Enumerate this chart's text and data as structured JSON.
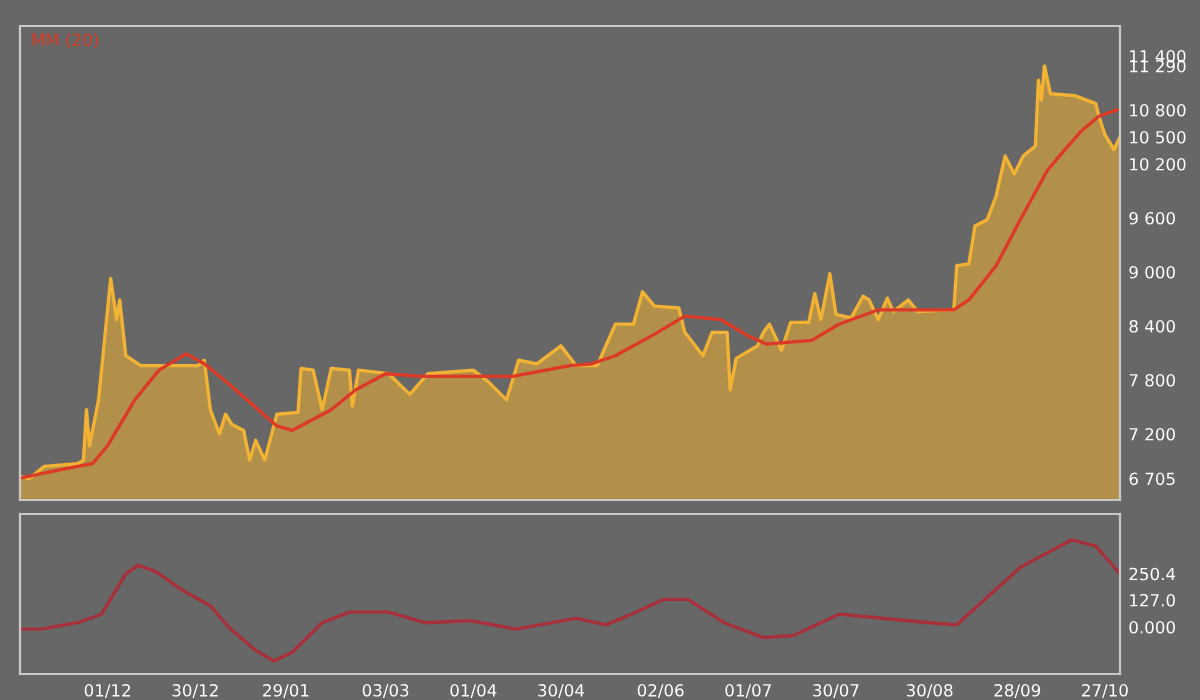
{
  "chart_data": [
    {
      "type": "line",
      "xlim": [
        "2012-11-02",
        "2013-11-01"
      ],
      "ylim": [
        6467,
        11733
      ],
      "yticks": [
        {
          "value": 11400,
          "label": "11 400"
        },
        {
          "value": 11290,
          "label": "11 290"
        },
        {
          "value": 10800,
          "label": "10 800"
        },
        {
          "value": 10500,
          "label": "10 500"
        },
        {
          "value": 10200,
          "label": "10 200"
        },
        {
          "value": 9600,
          "label": "9 600"
        },
        {
          "value": 9000,
          "label": "9 000"
        },
        {
          "value": 8400,
          "label": "8 400"
        },
        {
          "value": 7800,
          "label": "7 800"
        },
        {
          "value": 7200,
          "label": "7 200"
        },
        {
          "value": 6705,
          "label": "6 705"
        }
      ],
      "tick_labels": "y",
      "grid": false,
      "legend": "top left",
      "series": [
        {
          "type": "area",
          "color": "#f2b233",
          "x": [
            "2012-11-02",
            "2012-11-05",
            "2012-11-10",
            "2012-11-21",
            "2012-11-23",
            "2012-11-24",
            "2012-11-25",
            "2012-11-28",
            "2012-12-02",
            "2012-12-04",
            "2012-12-05",
            "2012-12-07",
            "2012-12-12",
            "2012-12-31",
            "2013-01-02",
            "2013-01-04",
            "2013-01-07",
            "2013-01-09",
            "2013-01-11",
            "2013-01-15",
            "2013-01-17",
            "2013-01-19",
            "2013-01-22",
            "2013-01-26",
            "2013-02-02",
            "2013-02-03",
            "2013-02-07",
            "2013-02-10",
            "2013-02-13",
            "2013-02-19",
            "2013-02-20",
            "2013-02-22",
            "2013-03-04",
            "2013-03-11",
            "2013-03-17",
            "2013-04-01",
            "2013-04-06",
            "2013-04-12",
            "2013-04-16",
            "2013-04-22",
            "2013-04-30",
            "2013-05-05",
            "2013-05-10",
            "2013-05-12",
            "2013-05-18",
            "2013-05-24",
            "2013-05-27",
            "2013-05-31",
            "2013-06-08",
            "2013-06-10",
            "2013-06-16",
            "2013-06-19",
            "2013-06-24",
            "2013-06-25",
            "2013-06-27",
            "2013-07-04",
            "2013-07-06",
            "2013-07-08",
            "2013-07-12",
            "2013-07-15",
            "2013-07-21",
            "2013-07-23",
            "2013-07-25",
            "2013-07-28",
            "2013-07-30",
            "2013-08-04",
            "2013-08-08",
            "2013-08-10",
            "2013-08-13",
            "2013-08-16",
            "2013-08-18",
            "2013-08-23",
            "2013-08-26",
            "2013-09-07",
            "2013-09-08",
            "2013-09-12",
            "2013-09-14",
            "2013-09-18",
            "2013-09-21",
            "2013-09-24",
            "2013-09-27",
            "2013-09-30",
            "2013-10-04",
            "2013-10-05",
            "2013-10-06",
            "2013-10-07",
            "2013-10-09",
            "2013-10-17",
            "2013-10-24",
            "2013-10-25",
            "2013-10-27",
            "2013-10-30",
            "2013-11-01"
          ],
          "values": [
            6730,
            6705,
            6840,
            6870,
            6910,
            7470,
            7070,
            7580,
            8930,
            8470,
            8690,
            8070,
            7960,
            7960,
            8020,
            7470,
            7200,
            7420,
            7310,
            7240,
            6910,
            7130,
            6910,
            7420,
            7440,
            7930,
            7910,
            7470,
            7930,
            7910,
            7510,
            7910,
            7870,
            7640,
            7870,
            7910,
            7780,
            7580,
            8020,
            7980,
            8180,
            7960,
            7960,
            7960,
            8420,
            8420,
            8780,
            8620,
            8600,
            8330,
            8070,
            8330,
            8330,
            7690,
            8040,
            8180,
            8330,
            8420,
            8130,
            8440,
            8440,
            8760,
            8470,
            8980,
            8530,
            8490,
            8730,
            8690,
            8470,
            8710,
            8560,
            8690,
            8560,
            8580,
            9070,
            9090,
            9510,
            9580,
            9840,
            10290,
            10090,
            10290,
            10400,
            11130,
            10910,
            11290,
            10980,
            10960,
            10870,
            10730,
            10530,
            10360,
            10500
          ]
        },
        {
          "name": "MM (20)",
          "color": "#dc3a26",
          "x": [
            "2012-11-02",
            "2012-11-18",
            "2012-11-26",
            "2012-12-01",
            "2012-12-10",
            "2012-12-18",
            "2012-12-27",
            "2013-01-02",
            "2013-01-11",
            "2013-01-26",
            "2013-01-31",
            "2013-02-13",
            "2013-02-21",
            "2013-03-03",
            "2013-03-15",
            "2013-04-01",
            "2013-04-14",
            "2013-05-03",
            "2013-05-10",
            "2013-05-18",
            "2013-05-31",
            "2013-06-10",
            "2013-06-22",
            "2013-07-01",
            "2013-07-07",
            "2013-07-22",
            "2013-07-31",
            "2013-08-13",
            "2013-09-07",
            "2013-09-12",
            "2013-09-21",
            "2013-09-29",
            "2013-10-08",
            "2013-10-12",
            "2013-10-19",
            "2013-10-25",
            "2013-10-31"
          ],
          "values": [
            6710,
            6820,
            6870,
            7070,
            7580,
            7910,
            8090,
            7980,
            7730,
            7290,
            7240,
            7470,
            7690,
            7870,
            7840,
            7840,
            7840,
            7960,
            7980,
            8070,
            8310,
            8510,
            8470,
            8290,
            8200,
            8240,
            8420,
            8580,
            8580,
            8690,
            9070,
            9580,
            10130,
            10290,
            10560,
            10730,
            10800
          ]
        }
      ]
    },
    {
      "type": "line",
      "xlim": [
        "2012-11-02",
        "2013-11-01"
      ],
      "ylim": [
        -221,
        531
      ],
      "yticks": [
        {
          "value": 250.4,
          "label": "250.4"
        },
        {
          "value": 127,
          "label": "127.0"
        },
        {
          "value": 0,
          "label": "0.000"
        }
      ],
      "xticks": [
        {
          "value": "2012-12-01",
          "label": "01/12"
        },
        {
          "value": "2012-12-30",
          "label": "30/12"
        },
        {
          "value": "2013-01-29",
          "label": "29/01"
        },
        {
          "value": "2013-03-03",
          "label": "03/03"
        },
        {
          "value": "2013-04-01",
          "label": "01/04"
        },
        {
          "value": "2013-04-30",
          "label": "30/04"
        },
        {
          "value": "2013-06-02",
          "label": "02/06"
        },
        {
          "value": "2013-07-01",
          "label": "01/07"
        },
        {
          "value": "2013-07-30",
          "label": "30/07"
        },
        {
          "value": "2013-08-30",
          "label": "30/08"
        },
        {
          "value": "2013-09-28",
          "label": "28/09"
        },
        {
          "value": "2013-10-27",
          "label": "27/10"
        }
      ],
      "grid": false,
      "series": [
        {
          "color": "#a8303a",
          "x": [
            "2012-11-02",
            "2012-11-09",
            "2012-11-21",
            "2012-11-29",
            "2012-12-07",
            "2012-12-11",
            "2012-12-17",
            "2012-12-26",
            "2013-01-04",
            "2013-01-10",
            "2013-01-19",
            "2013-01-25",
            "2013-01-31",
            "2013-02-10",
            "2013-02-19",
            "2013-03-04",
            "2013-03-16",
            "2013-03-31",
            "2013-04-15",
            "2013-05-05",
            "2013-05-15",
            "2013-05-25",
            "2013-06-03",
            "2013-06-11",
            "2013-06-23",
            "2013-07-06",
            "2013-07-16",
            "2013-07-31",
            "2013-08-15",
            "2013-08-30",
            "2013-09-08",
            "2013-09-29",
            "2013-10-16",
            "2013-10-24",
            "2013-11-01"
          ],
          "values": [
            -10,
            -10,
            20,
            60,
            250,
            290,
            260,
            170,
            100,
            0,
            -110,
            -160,
            -120,
            20,
            70,
            70,
            20,
            30,
            -10,
            40,
            10,
            70,
            130,
            130,
            20,
            -50,
            -40,
            60,
            40,
            20,
            10,
            280,
            410,
            380,
            250.4
          ]
        }
      ]
    }
  ]
}
